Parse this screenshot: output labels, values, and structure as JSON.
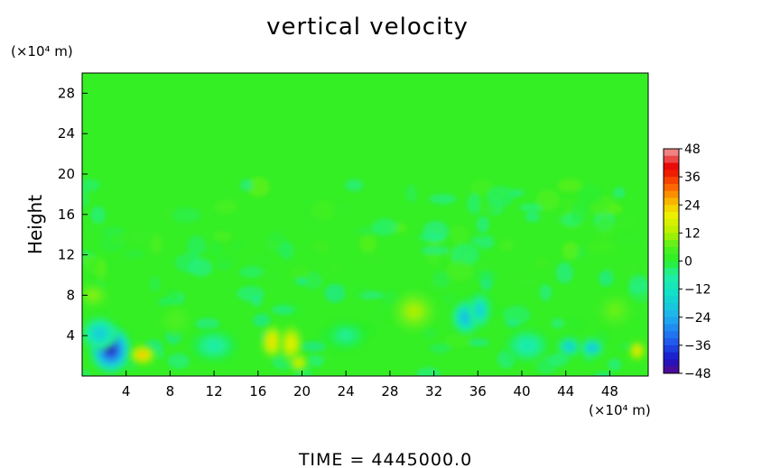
{
  "chart_data": {
    "type": "heatmap",
    "title": "vertical velocity",
    "ylabel": "Height",
    "xlabel": "",
    "x_unit_label": "(×10⁴ m)",
    "y_unit_label": "(×10⁴ m)",
    "xlim": [
      0,
      51.5
    ],
    "ylim": [
      0,
      30
    ],
    "xticks": [
      4,
      8,
      12,
      16,
      20,
      24,
      28,
      32,
      36,
      40,
      44,
      48
    ],
    "yticks": [
      4,
      8,
      12,
      16,
      20,
      24,
      28
    ],
    "colorbar": {
      "ticks": [
        48,
        36,
        24,
        12,
        0,
        -12,
        -24,
        -36,
        -48
      ],
      "range": [
        -48,
        48
      ]
    },
    "background_value": 2,
    "features": [
      {
        "x": 2.6,
        "y": 2.6,
        "rx": 1.8,
        "ry": 2.2,
        "value": -44
      },
      {
        "x": 1.6,
        "y": 4.2,
        "rx": 1.6,
        "ry": 1.6,
        "value": -20
      },
      {
        "x": 5.5,
        "y": 2.1,
        "rx": 1.1,
        "ry": 0.9,
        "value": 28
      },
      {
        "x": 17.3,
        "y": 3.4,
        "rx": 1.0,
        "ry": 1.6,
        "value": 22
      },
      {
        "x": 19.0,
        "y": 3.2,
        "rx": 1.0,
        "ry": 1.8,
        "value": 20
      },
      {
        "x": 19.7,
        "y": 1.3,
        "rx": 0.8,
        "ry": 0.8,
        "value": 20
      },
      {
        "x": 30.2,
        "y": 6.4,
        "rx": 2.0,
        "ry": 2.0,
        "value": 12
      },
      {
        "x": 34.9,
        "y": 5.8,
        "rx": 1.2,
        "ry": 1.6,
        "value": -24
      },
      {
        "x": 36.2,
        "y": 6.5,
        "rx": 0.9,
        "ry": 1.6,
        "value": -20
      },
      {
        "x": 44.3,
        "y": 2.9,
        "rx": 1.0,
        "ry": 0.9,
        "value": -22
      },
      {
        "x": 46.4,
        "y": 2.8,
        "rx": 1.0,
        "ry": 0.9,
        "value": -24
      },
      {
        "x": 50.5,
        "y": 2.5,
        "rx": 0.7,
        "ry": 0.9,
        "value": 24
      },
      {
        "x": 1.0,
        "y": 8.0,
        "rx": 1.4,
        "ry": 1.2,
        "value": 10
      },
      {
        "x": 12.0,
        "y": 3.0,
        "rx": 2.2,
        "ry": 1.6,
        "value": -8
      },
      {
        "x": 40.5,
        "y": 3.0,
        "rx": 2.0,
        "ry": 1.6,
        "value": -10
      },
      {
        "x": 8.5,
        "y": 5.5,
        "rx": 1.4,
        "ry": 1.4,
        "value": 6
      },
      {
        "x": 24.0,
        "y": 4.0,
        "rx": 2.0,
        "ry": 1.4,
        "value": -6
      },
      {
        "x": 48.5,
        "y": 6.5,
        "rx": 1.6,
        "ry": 1.6,
        "value": 8
      }
    ]
  },
  "footer": {
    "time_text": "TIME = 4445000.0"
  }
}
